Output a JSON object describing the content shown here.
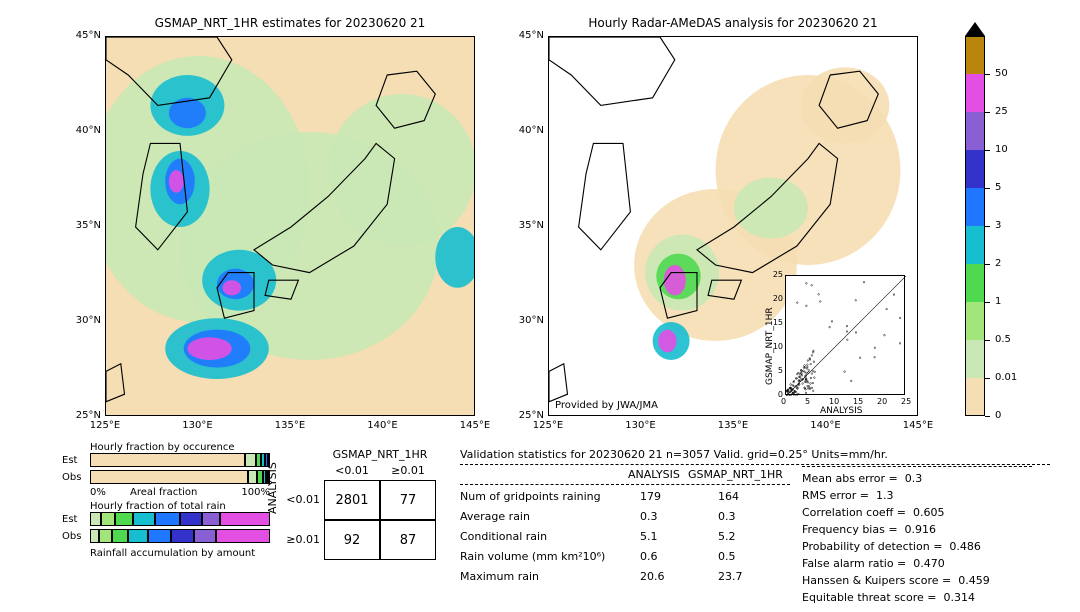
{
  "colors": {
    "levels": [
      0,
      0.01,
      0.5,
      1,
      2,
      3,
      5,
      10,
      25,
      50
    ],
    "palette": [
      "#f5deb3",
      "#c9e8b5",
      "#a2e57a",
      "#4fd94f",
      "#17becf",
      "#1f77ff",
      "#3333cc",
      "#8a5fd3",
      "#e34fe3",
      "#b8860b"
    ],
    "border": "#000000",
    "bg": "#ffffff"
  },
  "left_map": {
    "title": "GSMAP_NRT_1HR estimates for 20230620 21",
    "xticks": [
      "125°E",
      "130°E",
      "135°E",
      "140°E",
      "145°E"
    ],
    "yticks": [
      "25°N",
      "30°N",
      "35°N",
      "40°N",
      "45°N"
    ]
  },
  "right_map": {
    "title": "Hourly Radar-AMeDAS analysis for 20230620 21",
    "xticks": [
      "125°E",
      "130°E",
      "135°E",
      "140°E",
      "145°E"
    ],
    "yticks": [
      "25°N",
      "30°N",
      "35°N",
      "40°N",
      "45°N"
    ],
    "attribution": "Provided by JWA/JMA"
  },
  "scatter": {
    "xlabel": "ANALYSIS",
    "ylabel": "GSMAP_NRT_1HR",
    "ticks": [
      0,
      5,
      10,
      15,
      20,
      25
    ]
  },
  "bar_a": {
    "title": "Hourly fraction by occurence",
    "rows": [
      "Est",
      "Obs"
    ],
    "xlab_left": "0%",
    "xlab_right": "100%",
    "xlab_center": "Areal fraction"
  },
  "bar_b": {
    "title": "Hourly fraction of total rain",
    "rows": [
      "Est",
      "Obs"
    ],
    "footer": "Rainfall accumulation by amount"
  },
  "contingency": {
    "col_header": "GSMAP_NRT_1HR",
    "cols": [
      "<0.01",
      "≥0.01"
    ],
    "row_header": "ANALYSIS",
    "rows": [
      "<0.01",
      "≥0.01"
    ],
    "vals": [
      [
        "2801",
        "77"
      ],
      [
        "92",
        "87"
      ]
    ]
  },
  "stats_title": "Validation statistics for 20230620 21  n=3057 Valid. grid=0.25°  Units=mm/hr.",
  "stats_table": {
    "col1": "ANALYSIS",
    "col2": "GSMAP_NRT_1HR",
    "rows": [
      {
        "label": "Num of gridpoints raining",
        "a": "179",
        "b": "164"
      },
      {
        "label": "Average rain",
        "a": "0.3",
        "b": "0.3"
      },
      {
        "label": "Conditional rain",
        "a": "5.1",
        "b": "5.2"
      },
      {
        "label": "Rain volume (mm km²10⁶)",
        "a": "0.6",
        "b": "0.5"
      },
      {
        "label": "Maximum rain",
        "a": "20.6",
        "b": "23.7"
      }
    ]
  },
  "stats_list": [
    {
      "label": "Mean abs error =",
      "v": "0.3"
    },
    {
      "label": "RMS error =",
      "v": "1.3"
    },
    {
      "label": "Correlation coeff =",
      "v": "0.605"
    },
    {
      "label": "Frequency bias =",
      "v": "0.916"
    },
    {
      "label": "Probability of detection =",
      "v": "0.486"
    },
    {
      "label": "False alarm ratio =",
      "v": "0.470"
    },
    {
      "label": "Hanssen & Kuipers score =",
      "v": "0.459"
    },
    {
      "label": "Equitable threat score =",
      "v": "0.314"
    }
  ],
  "colorbar_labels": [
    "0",
    "0.01",
    "0.5",
    "1",
    "2",
    "3",
    "5",
    "10",
    "25",
    "50"
  ]
}
